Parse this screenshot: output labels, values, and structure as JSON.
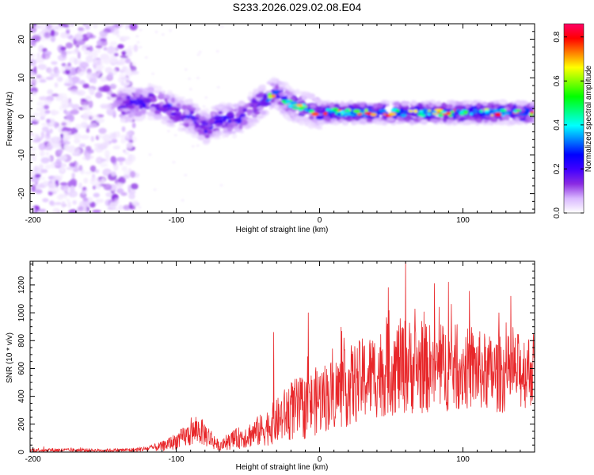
{
  "title": "S233.2026.029.02.08.E04",
  "colors": {
    "snr_line": "#e8272a",
    "frame": "#000000",
    "background": "#ffffff"
  },
  "chart_data": [
    {
      "type": "heatmap",
      "name": "spectrogram",
      "xlabel": "Height of straight line (km)",
      "ylabel": "Frequency (Hz)",
      "xlim": [
        -202,
        150
      ],
      "ylim": [
        -25,
        24
      ],
      "x_ticks": [
        -200,
        -100,
        0,
        100
      ],
      "x_tick_labels": [
        "-200",
        "-100",
        "0",
        "100"
      ],
      "y_ticks": [
        20,
        10,
        0,
        -10,
        -20
      ],
      "y_tick_labels": [
        "20",
        "10",
        "0",
        "-10",
        "-20"
      ],
      "ridge_frequency": {
        "x": [
          -130,
          -120,
          -110,
          -100,
          -90,
          -80,
          -70,
          -60,
          -50,
          -40,
          -30,
          -20,
          -10,
          0,
          20,
          40,
          60,
          80,
          100,
          120,
          150
        ],
        "y": [
          3,
          4,
          3,
          1,
          0,
          -3,
          -1,
          -1,
          1,
          4,
          6,
          3,
          2,
          1,
          1,
          1,
          1,
          1,
          1,
          1,
          1
        ]
      }
    },
    {
      "type": "colorbar",
      "name": "amplitude-scale",
      "label": "Normalized spectral amplitude",
      "range": [
        0.0,
        0.86
      ],
      "ticks": [
        0.0,
        0.2,
        0.4,
        0.6,
        0.8
      ],
      "tick_labels": [
        "0.0",
        "0.2",
        "0.4",
        "0.6",
        "0.8"
      ],
      "colormap": [
        "#ffffff",
        "#d9b8ff",
        "#8a2be2",
        "#4000ff",
        "#0000ff",
        "#0080ff",
        "#00ffff",
        "#00ff80",
        "#00ff00",
        "#80ff00",
        "#ffff00",
        "#ff8000",
        "#ff0000",
        "#ff0066"
      ]
    },
    {
      "type": "line",
      "name": "snr",
      "xlabel": "Height of straight line (km)",
      "ylabel": "SNR (10 * v/v)",
      "xlim": [
        -202,
        150
      ],
      "ylim": [
        0,
        1370
      ],
      "x_ticks": [
        -200,
        -100,
        0,
        100
      ],
      "x_tick_labels": [
        "-200",
        "-100",
        "0",
        "100"
      ],
      "y_ticks": [
        0,
        200,
        400,
        600,
        800,
        1000,
        1200
      ],
      "y_tick_labels": [
        "0",
        "200",
        "400",
        "600",
        "800",
        "1000",
        "1200"
      ],
      "envelope": {
        "x": [
          -202,
          -150,
          -130,
          -120,
          -110,
          -100,
          -90,
          -85,
          -80,
          -75,
          -70,
          -60,
          -50,
          -40,
          -30,
          -20,
          -10,
          0,
          10,
          20,
          30,
          40,
          50,
          60,
          70,
          80,
          90,
          100,
          110,
          120,
          130,
          140,
          150
        ],
        "mean": [
          15,
          12,
          15,
          25,
          40,
          80,
          130,
          160,
          130,
          90,
          40,
          90,
          120,
          160,
          220,
          300,
          320,
          380,
          420,
          470,
          520,
          560,
          600,
          620,
          600,
          600,
          610,
          600,
          590,
          560,
          560,
          580,
          600
        ],
        "spread": [
          15,
          12,
          15,
          20,
          35,
          60,
          90,
          100,
          90,
          70,
          30,
          70,
          90,
          120,
          160,
          220,
          230,
          250,
          260,
          290,
          300,
          320,
          340,
          350,
          330,
          320,
          320,
          300,
          290,
          280,
          280,
          280,
          270
        ]
      },
      "peaks": {
        "x": [
          60,
          -8,
          -32,
          90,
          48,
          80,
          125
        ],
        "y": [
          1370,
          1000,
          860,
          1220,
          1180,
          1210,
          1000
        ]
      }
    }
  ]
}
